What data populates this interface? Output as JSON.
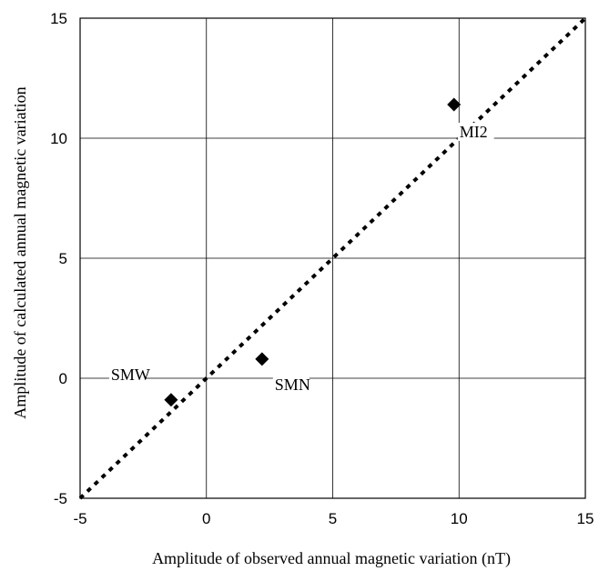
{
  "chart_data": {
    "type": "scatter",
    "title": "",
    "xlabel": "Amplitude of observed annual magnetic variation (nT)",
    "ylabel": "Amplitude of calculated annual magnetic variation",
    "xlim": [
      -5,
      15
    ],
    "ylim": [
      -5,
      15
    ],
    "x_ticks": [
      "-5",
      "0",
      "5",
      "10",
      "15"
    ],
    "y_ticks": [
      "-5",
      "0",
      "5",
      "10",
      "15"
    ],
    "x_tick_values": [
      -5,
      0,
      5,
      10,
      15
    ],
    "y_tick_values": [
      -5,
      0,
      5,
      10,
      15
    ],
    "grid": true,
    "reference_line": {
      "style": "dotted",
      "x": [
        -5,
        15
      ],
      "y": [
        -5,
        15
      ]
    },
    "points": [
      {
        "label": "SMW",
        "x": -1.4,
        "y": -0.9
      },
      {
        "label": "SMN",
        "x": 2.2,
        "y": 0.8
      },
      {
        "label": "MI2",
        "x": 9.8,
        "y": 11.4
      }
    ],
    "marker": "diamond",
    "colors": {
      "marker": "#000000",
      "grid": "#000000",
      "line": "#000000"
    }
  }
}
